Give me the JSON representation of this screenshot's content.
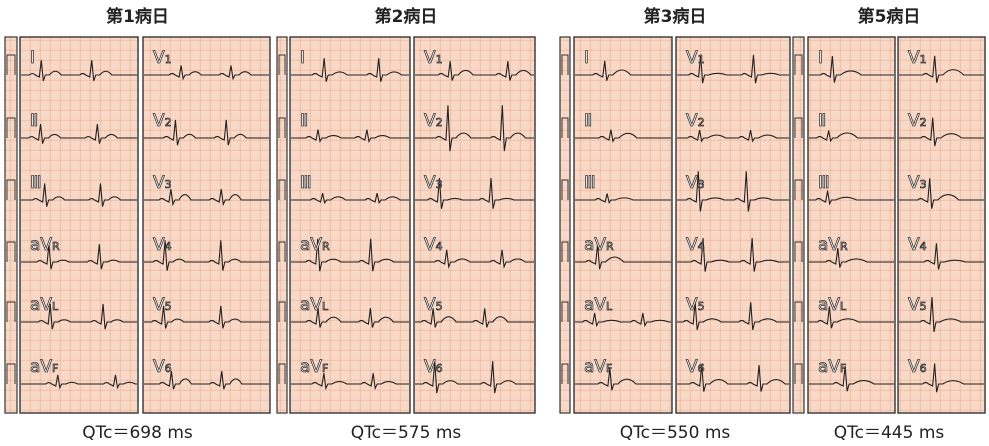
{
  "panels": [
    {
      "title": "第1病日",
      "qtc": "QTc＝698 ms"
    },
    {
      "title": "第2病日",
      "qtc": "QTc＝575 ms"
    },
    {
      "title": "第3病日",
      "qtc": "QTc＝550 ms"
    },
    {
      "title": "第5病日",
      "qtc": "QTc＝445 ms"
    }
  ],
  "limb_leads": [
    {
      "base": "Ⅰ"
    },
    {
      "base": "Ⅱ"
    },
    {
      "base": "Ⅲ"
    },
    {
      "base": "aV",
      "sub": "R"
    },
    {
      "base": "aV",
      "sub": "L"
    },
    {
      "base": "aV",
      "sub": "F"
    }
  ],
  "chest_leads": [
    {
      "base": "V",
      "sub": "1"
    },
    {
      "base": "V",
      "sub": "2"
    },
    {
      "base": "V",
      "sub": "3"
    },
    {
      "base": "V",
      "sub": "4"
    },
    {
      "base": "V",
      "sub": "5"
    },
    {
      "base": "V",
      "sub": "6"
    }
  ]
}
